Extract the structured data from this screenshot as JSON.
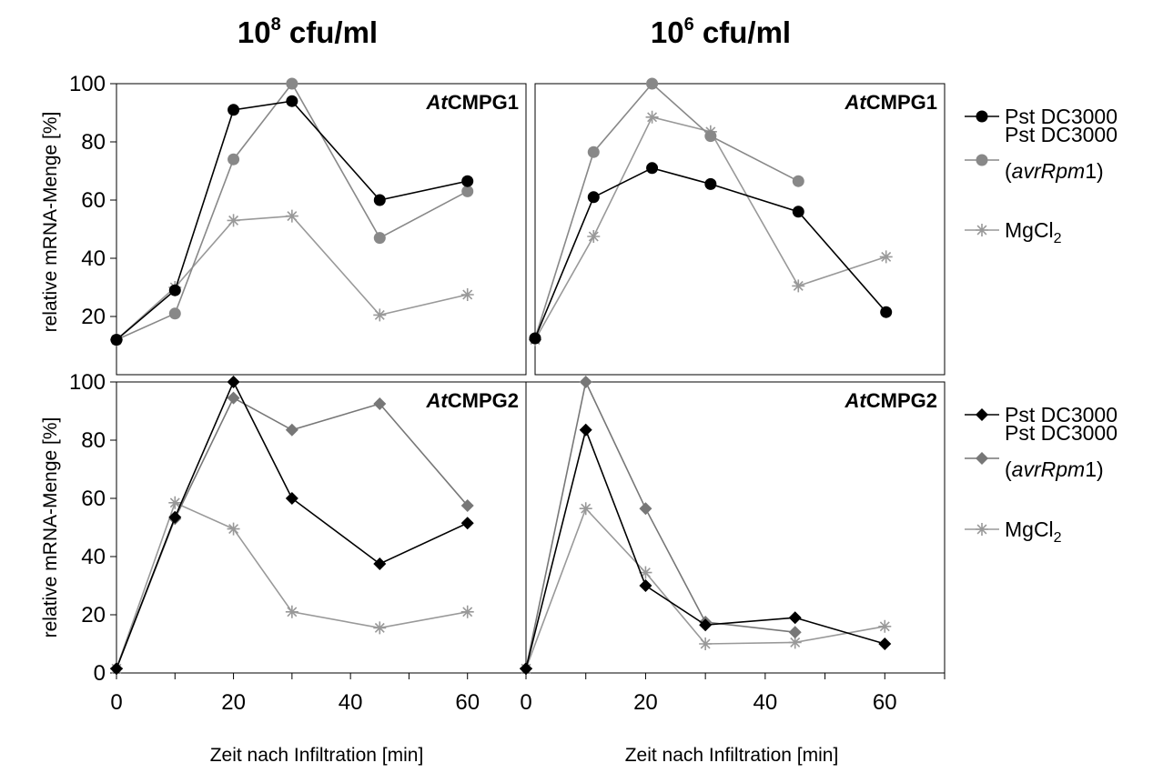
{
  "column_titles": [
    {
      "base": "10",
      "sup": "8",
      "unit": " cfu/ml"
    },
    {
      "base": "10",
      "sup": "6",
      "unit": " cfu/ml"
    }
  ],
  "ylabel": "relative mRNA-Menge [%]",
  "xlabel": "Zeit nach Infiltration [min]",
  "x_ticks": [
    "0",
    "20",
    "40",
    "60"
  ],
  "y_ticks_top": [
    "20",
    "40",
    "60",
    "80",
    "100"
  ],
  "y_ticks_bottom": [
    "0",
    "20",
    "40",
    "60",
    "80",
    "100"
  ],
  "legends": [
    {
      "items": [
        {
          "lines": [
            "Pst DC3000"
          ],
          "marker": "circle",
          "color": "#000000"
        },
        {
          "lines": [
            "Pst DC3000",
            "(avrRpm1)"
          ],
          "marker": "circle",
          "color": "#888888"
        },
        {
          "lines": [
            "MgCl2"
          ],
          "marker": "star",
          "color": "#999999"
        }
      ]
    },
    {
      "items": [
        {
          "lines": [
            "Pst DC3000"
          ],
          "marker": "diamond",
          "color": "#000000"
        },
        {
          "lines": [
            "Pst DC3000",
            "(avrRpm1)"
          ],
          "marker": "diamond",
          "color": "#777777"
        },
        {
          "lines": [
            "MgCl2"
          ],
          "marker": "star",
          "color": "#999999"
        }
      ]
    }
  ],
  "chart_data": [
    {
      "type": "line",
      "label": "AtCMPG1",
      "column_title": "10^8 cfu/ml",
      "xlim": [
        0,
        70
      ],
      "ylim": [
        10,
        100
      ],
      "series": [
        {
          "name": "Pst DC3000",
          "marker": "circle",
          "color": "#000000",
          "x": [
            0,
            10,
            20,
            30,
            45,
            60
          ],
          "y": [
            12,
            29,
            91,
            94,
            60,
            66.5
          ]
        },
        {
          "name": "Pst DC3000 (avrRpm1)",
          "marker": "circle",
          "color": "#888888",
          "x": [
            0,
            10,
            20,
            30,
            45,
            60
          ],
          "y": [
            12,
            21,
            74,
            100,
            47,
            63
          ]
        },
        {
          "name": "MgCl2",
          "marker": "star",
          "color": "#999999",
          "x": [
            0,
            10,
            20,
            30,
            45,
            60
          ],
          "y": [
            12,
            30,
            53,
            54.5,
            20.5,
            27.5
          ]
        }
      ]
    },
    {
      "type": "line",
      "label": "AtCMPG1",
      "column_title": "10^6 cfu/ml",
      "xlim": [
        0,
        70
      ],
      "ylim": [
        10,
        100
      ],
      "series": [
        {
          "name": "Pst DC3000",
          "marker": "circle",
          "color": "#000000",
          "x": [
            0,
            10,
            20,
            30,
            45,
            60
          ],
          "y": [
            12.5,
            61,
            71,
            65.5,
            56,
            21.5
          ]
        },
        {
          "name": "Pst DC3000 (avrRpm1)",
          "marker": "circle",
          "color": "#888888",
          "x": [
            0,
            10,
            20,
            30,
            45
          ],
          "y": [
            12.5,
            76.5,
            100,
            82,
            66.5
          ]
        },
        {
          "name": "MgCl2",
          "marker": "star",
          "color": "#999999",
          "x": [
            0,
            10,
            20,
            30,
            45,
            60
          ],
          "y": [
            12,
            47.5,
            88.5,
            83.5,
            30.5,
            40.5
          ]
        }
      ]
    },
    {
      "type": "line",
      "label": "AtCMPG2",
      "column_title": "10^8 cfu/ml",
      "xlim": [
        0,
        70
      ],
      "ylim": [
        0,
        100
      ],
      "series": [
        {
          "name": "Pst DC3000",
          "marker": "diamond",
          "color": "#000000",
          "x": [
            0,
            10,
            20,
            30,
            45,
            60
          ],
          "y": [
            1.5,
            53.5,
            100,
            60,
            37.5,
            51.5
          ]
        },
        {
          "name": "Pst DC3000 (avrRpm1)",
          "marker": "diamond",
          "color": "#777777",
          "x": [
            0,
            10,
            20,
            30,
            45,
            60
          ],
          "y": [
            1.5,
            53,
            94.5,
            83.5,
            92.5,
            57.5
          ]
        },
        {
          "name": "MgCl2",
          "marker": "star",
          "color": "#999999",
          "x": [
            0,
            10,
            20,
            30,
            45,
            60
          ],
          "y": [
            1.5,
            58.5,
            49.5,
            21,
            15.5,
            21
          ]
        }
      ]
    },
    {
      "type": "line",
      "label": "AtCMPG2",
      "column_title": "10^6 cfu/ml",
      "xlim": [
        0,
        70
      ],
      "ylim": [
        0,
        100
      ],
      "series": [
        {
          "name": "Pst DC3000",
          "marker": "diamond",
          "color": "#000000",
          "x": [
            0,
            10,
            20,
            30,
            45,
            60
          ],
          "y": [
            1.5,
            83.5,
            30,
            16.5,
            19,
            10
          ]
        },
        {
          "name": "Pst DC3000 (avrRpm1)",
          "marker": "diamond",
          "color": "#777777",
          "x": [
            0,
            10,
            20,
            30,
            45
          ],
          "y": [
            1.5,
            100,
            56.5,
            17.5,
            14
          ]
        },
        {
          "name": "MgCl2",
          "marker": "star",
          "color": "#999999",
          "x": [
            0,
            10,
            20,
            30,
            45,
            60
          ],
          "y": [
            1.5,
            56.5,
            34.5,
            10,
            10.5,
            16
          ]
        }
      ]
    }
  ]
}
